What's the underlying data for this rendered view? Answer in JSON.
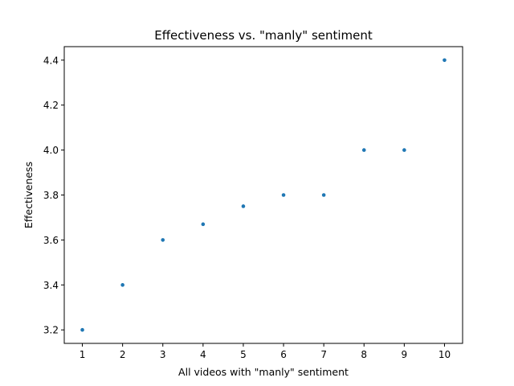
{
  "chart_data": {
    "type": "scatter",
    "title": "Effectiveness vs. \"manly\" sentiment",
    "xlabel": "All videos with \"manly\" sentiment",
    "ylabel": "Effectiveness",
    "x": [
      1,
      2,
      3,
      4,
      5,
      6,
      7,
      8,
      9,
      10
    ],
    "y": [
      3.2,
      3.4,
      3.6,
      3.67,
      3.75,
      3.8,
      3.8,
      4.0,
      4.0,
      4.4
    ],
    "xlim": [
      0.55,
      10.45
    ],
    "ylim": [
      3.14,
      4.46
    ],
    "xticks": [
      1,
      2,
      3,
      4,
      5,
      6,
      7,
      8,
      9,
      10
    ],
    "yticks": [
      3.2,
      3.4,
      3.6,
      3.8,
      4.0,
      4.2,
      4.4
    ],
    "ytick_labels": [
      "3.2",
      "3.4",
      "3.6",
      "3.8",
      "4.0",
      "4.2",
      "4.4"
    ],
    "grid": false,
    "legend": "none",
    "marker_color": "#1f77b4"
  }
}
